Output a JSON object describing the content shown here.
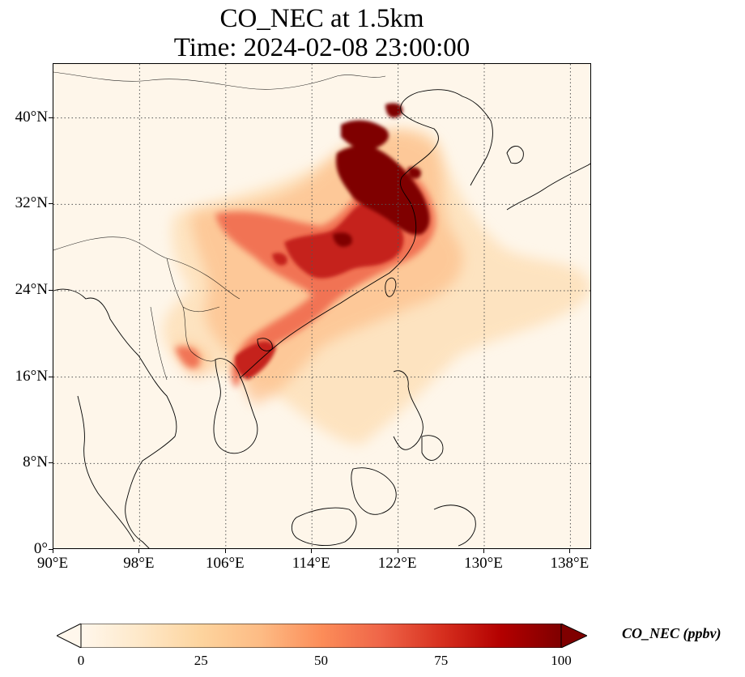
{
  "title": {
    "line1": "CO_NEC at 1.5km",
    "line2": "Time: 2024-02-08 23:00:00"
  },
  "map": {
    "projection": "PlateCarree",
    "lon_range": [
      90,
      140
    ],
    "lat_range": [
      0,
      45
    ],
    "gridlines": "dotted",
    "lat_ticks": [
      {
        "value": 40,
        "label": "40°N"
      },
      {
        "value": 32,
        "label": "32°N"
      },
      {
        "value": 24,
        "label": "24°N"
      },
      {
        "value": 16,
        "label": "16°N"
      },
      {
        "value": 8,
        "label": "8°N"
      },
      {
        "value": 0,
        "label": "0°"
      }
    ],
    "lon_ticks": [
      {
        "value": 90,
        "label": "90°E"
      },
      {
        "value": 98,
        "label": "98°E"
      },
      {
        "value": 106,
        "label": "106°E"
      },
      {
        "value": 114,
        "label": "114°E"
      },
      {
        "value": 122,
        "label": "122°E"
      },
      {
        "value": 130,
        "label": "130°E"
      },
      {
        "value": 138,
        "label": "138°E"
      }
    ],
    "background_color": "#fef6ea",
    "features": [
      "coastlines",
      "country borders"
    ]
  },
  "colorbar": {
    "label": "CO_NEC (ppbv)",
    "colormap": "OrRd",
    "range": [
      0,
      100
    ],
    "extend": "both",
    "ticks": [
      {
        "value": 0,
        "label": "0"
      },
      {
        "value": 25,
        "label": "25"
      },
      {
        "value": 50,
        "label": "50"
      },
      {
        "value": 75,
        "label": "75"
      },
      {
        "value": 100,
        "label": "100"
      }
    ],
    "colors": [
      "#fff7ec",
      "#fee8c8",
      "#fdd49e",
      "#fdbb84",
      "#fc8d59",
      "#ef6548",
      "#d7301f",
      "#b30000",
      "#7f0000"
    ]
  },
  "field_levels": {
    "high": "#7f0000",
    "medium_high": "#c5221a",
    "medium": "#ef6548",
    "low": "#fdbb84",
    "very_low": "#fdd49e"
  }
}
